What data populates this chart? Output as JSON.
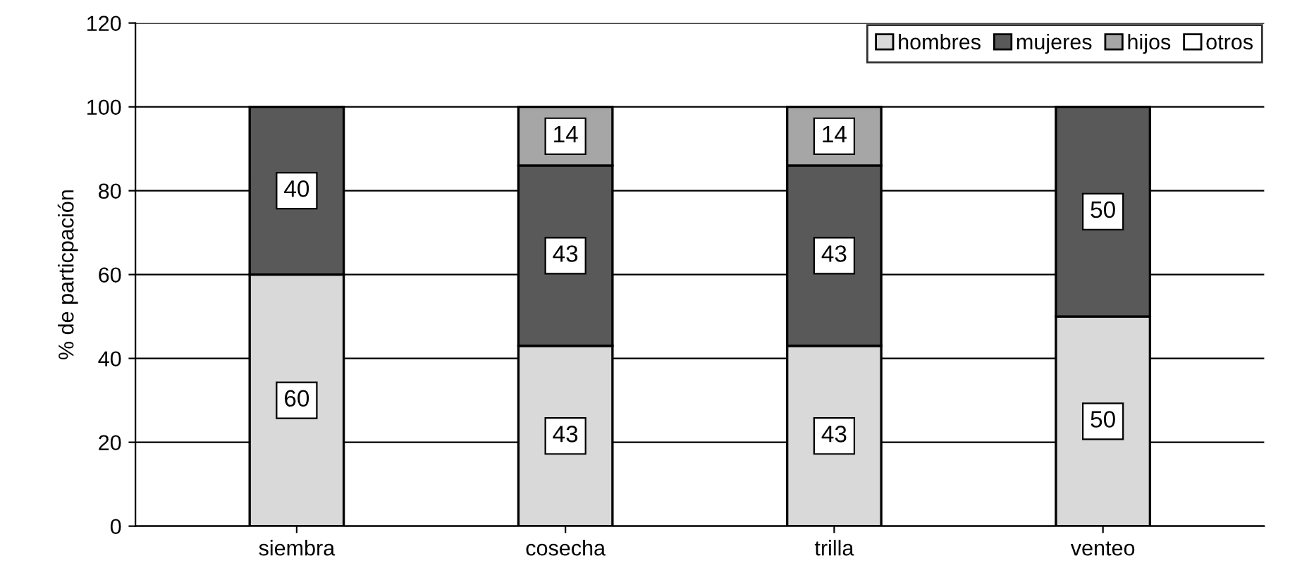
{
  "chart_data": {
    "type": "bar",
    "stacked": true,
    "ylabel": "% de particpación",
    "categories": [
      "siembra",
      "cosecha",
      "trilla",
      "venteo"
    ],
    "series": [
      {
        "name": "hombres",
        "color": "#d9d9d9",
        "values": [
          60,
          43,
          43,
          50
        ]
      },
      {
        "name": "mujeres",
        "color": "#595959",
        "values": [
          40,
          43,
          43,
          50
        ]
      },
      {
        "name": "hijos",
        "color": "#a6a6a6",
        "values": [
          null,
          14,
          14,
          null
        ]
      },
      {
        "name": "otros",
        "color": "#ffffff",
        "values": [
          null,
          null,
          null,
          null
        ]
      }
    ],
    "ylim": [
      0,
      120
    ],
    "yticks": [
      0,
      20,
      40,
      60,
      80,
      100,
      120
    ],
    "grid": "y",
    "legend": "top right",
    "data_labels": true
  }
}
